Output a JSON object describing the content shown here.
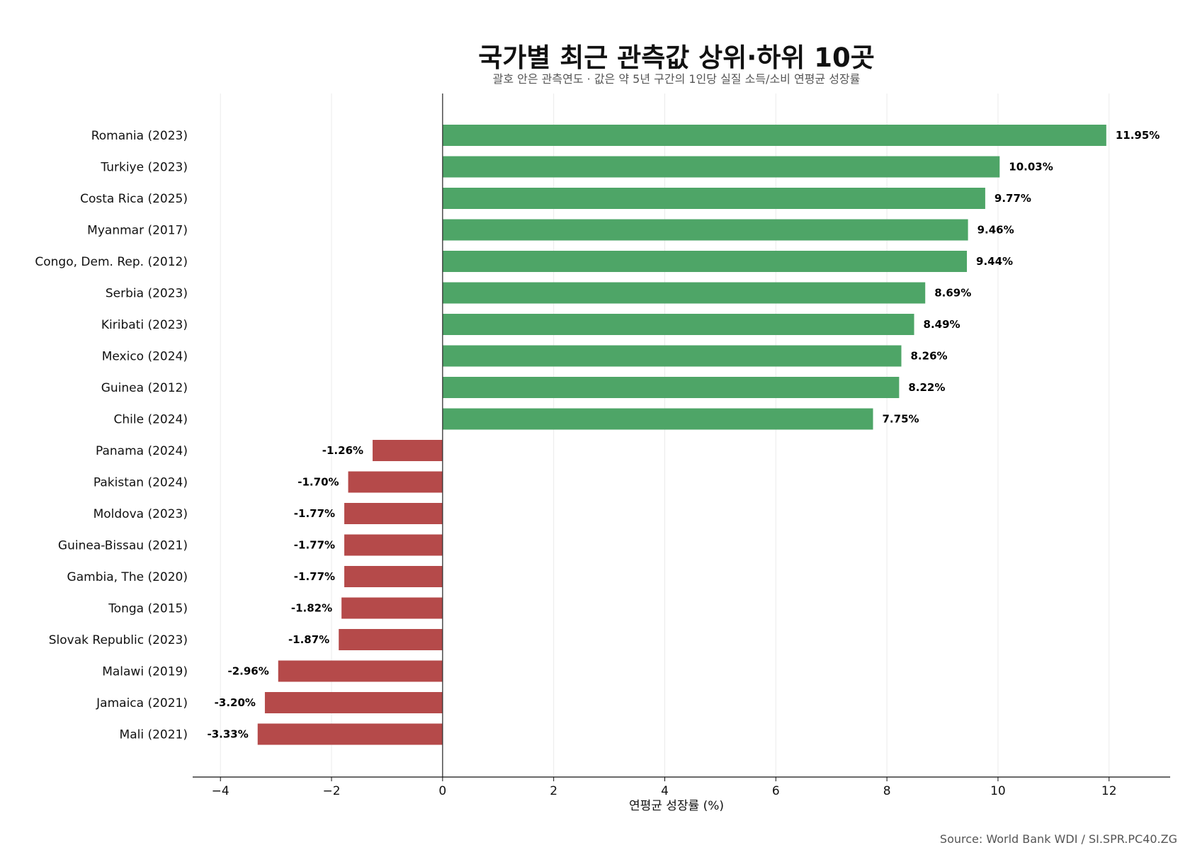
{
  "chart_data": {
    "type": "bar",
    "orientation": "horizontal",
    "title": "국가별 최근 관측값 상위·하위 10곳",
    "subtitle": "괄호 안은 관측연도 · 값은 약 5년 구간의 1인당 실질 소득/소비 연평균 성장률",
    "xlabel": "연평균 성장률 (%)",
    "ylabel": "",
    "xlim": [
      -4.5,
      13.1
    ],
    "xticks": [
      -4,
      -2,
      0,
      2,
      4,
      6,
      8,
      10,
      12
    ],
    "xtick_labels": [
      "−4",
      "−2",
      "0",
      "2",
      "4",
      "6",
      "8",
      "10",
      "12"
    ],
    "grid": "vertical",
    "source": "Source: World Bank WDI / SI.SPR.PC40.ZG",
    "colors": {
      "positive": "#4ea567",
      "negative": "#b54a4a"
    },
    "categories": [
      "Romania (2023)",
      "Turkiye (2023)",
      "Costa Rica (2025)",
      "Myanmar (2017)",
      "Congo, Dem. Rep. (2012)",
      "Serbia (2023)",
      "Kiribati (2023)",
      "Mexico (2024)",
      "Guinea (2012)",
      "Chile (2024)",
      "Panama (2024)",
      "Pakistan (2024)",
      "Moldova (2023)",
      "Guinea-Bissau (2021)",
      "Gambia, The (2020)",
      "Tonga (2015)",
      "Slovak Republic (2023)",
      "Malawi (2019)",
      "Jamaica (2021)",
      "Mali (2021)"
    ],
    "values": [
      11.95,
      10.03,
      9.77,
      9.46,
      9.44,
      8.69,
      8.49,
      8.26,
      8.22,
      7.75,
      -1.26,
      -1.7,
      -1.77,
      -1.77,
      -1.77,
      -1.82,
      -1.87,
      -2.96,
      -3.2,
      -3.33
    ],
    "value_labels": [
      "11.95%",
      "10.03%",
      "9.77%",
      "9.46%",
      "9.44%",
      "8.69%",
      "8.49%",
      "8.26%",
      "8.22%",
      "7.75%",
      "-1.26%",
      "-1.70%",
      "-1.77%",
      "-1.77%",
      "-1.77%",
      "-1.82%",
      "-1.87%",
      "-2.96%",
      "-3.20%",
      "-3.33%"
    ]
  }
}
